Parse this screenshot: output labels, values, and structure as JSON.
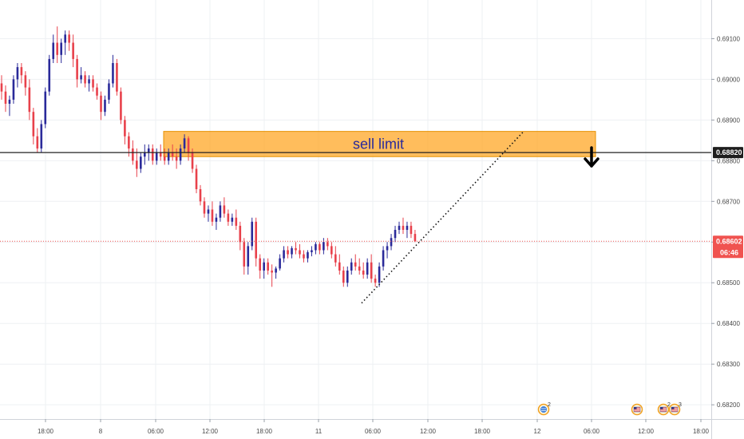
{
  "chart_data": {
    "type": "candlestick",
    "y_axis": {
      "side": "right",
      "range": [
        0.68165,
        0.69195
      ],
      "ticks": [
        "0.69100",
        "0.69000",
        "0.68900",
        "0.68800",
        "0.68700",
        "0.68600",
        "0.68500",
        "0.68400",
        "0.68300",
        "0.68200"
      ]
    },
    "x_axis": {
      "ticks": [
        "18:00",
        "8",
        "06:00",
        "12:00",
        "18:00",
        "11",
        "06:00",
        "12:00",
        "18:00",
        "12",
        "06:00",
        "12:00",
        "18:00"
      ]
    },
    "grid": true,
    "colors": {
      "up": "#2a2a9a",
      "down": "#e8414b",
      "grid": "#eef0f3",
      "zone": "#ffa726",
      "price_tag": "#f05350",
      "level_line": "#222222"
    },
    "sell_limit_zone": {
      "label": "sell limit",
      "top": 0.68872,
      "bottom": 0.6881
    },
    "horizontal_level": {
      "price": 0.6882,
      "label": "0.68820"
    },
    "current_price": {
      "price": 0.68602,
      "label": "0.68602",
      "countdown": "06:46"
    },
    "trendline": {
      "from": 0.6845,
      "to": 0.6887
    },
    "events": [
      {
        "icon": "globe-icon",
        "count": "2"
      },
      {
        "icon": "flag-icon",
        "count": ""
      },
      {
        "icon": "flag-icon",
        "count": "2"
      },
      {
        "icon": "flag-icon",
        "count": "3"
      }
    ],
    "candles": [
      [
        0.6899,
        0.6901,
        0.6895,
        0.6897
      ],
      [
        0.6897,
        0.68985,
        0.6892,
        0.6894
      ],
      [
        0.6894,
        0.6896,
        0.6891,
        0.6895
      ],
      [
        0.6895,
        0.6901,
        0.6894,
        0.69
      ],
      [
        0.69,
        0.6904,
        0.6898,
        0.6903
      ],
      [
        0.6903,
        0.6904,
        0.6899,
        0.6901
      ],
      [
        0.6901,
        0.6902,
        0.6896,
        0.6898
      ],
      [
        0.6898,
        0.69,
        0.689,
        0.6892
      ],
      [
        0.6892,
        0.6893,
        0.6884,
        0.6886
      ],
      [
        0.6886,
        0.6888,
        0.6882,
        0.6883
      ],
      [
        0.6883,
        0.689,
        0.6882,
        0.6889
      ],
      [
        0.6889,
        0.6898,
        0.6888,
        0.6897
      ],
      [
        0.6897,
        0.6906,
        0.6896,
        0.6905
      ],
      [
        0.6905,
        0.6911,
        0.6904,
        0.6909
      ],
      [
        0.6909,
        0.6913,
        0.6904,
        0.6906
      ],
      [
        0.6906,
        0.691,
        0.6904,
        0.6909
      ],
      [
        0.6909,
        0.6912,
        0.6906,
        0.6911
      ],
      [
        0.6911,
        0.6912,
        0.6907,
        0.6909
      ],
      [
        0.6909,
        0.6911,
        0.6903,
        0.6905
      ],
      [
        0.6905,
        0.6906,
        0.6898,
        0.69
      ],
      [
        0.69,
        0.6903,
        0.6899,
        0.6901
      ],
      [
        0.6901,
        0.6902,
        0.6898,
        0.6899
      ],
      [
        0.6899,
        0.6901,
        0.6897,
        0.69
      ],
      [
        0.69,
        0.6901,
        0.6897,
        0.6898
      ],
      [
        0.6898,
        0.6899,
        0.6895,
        0.6896
      ],
      [
        0.6896,
        0.6897,
        0.689,
        0.6892
      ],
      [
        0.6892,
        0.6896,
        0.6891,
        0.6895
      ],
      [
        0.6895,
        0.69,
        0.6894,
        0.6899
      ],
      [
        0.6899,
        0.6906,
        0.6898,
        0.6904
      ],
      [
        0.6904,
        0.6905,
        0.6896,
        0.6897
      ],
      [
        0.6897,
        0.6898,
        0.6889,
        0.689
      ],
      [
        0.689,
        0.6891,
        0.6884,
        0.6886
      ],
      [
        0.6886,
        0.6887,
        0.6881,
        0.6883
      ],
      [
        0.6883,
        0.6885,
        0.6879,
        0.688
      ],
      [
        0.688,
        0.6883,
        0.6876,
        0.6878
      ],
      [
        0.6878,
        0.6882,
        0.6877,
        0.6881
      ],
      [
        0.6881,
        0.6884,
        0.6879,
        0.6882
      ],
      [
        0.6882,
        0.6884,
        0.688,
        0.6883
      ],
      [
        0.6883,
        0.6884,
        0.6879,
        0.688
      ],
      [
        0.688,
        0.6883,
        0.6879,
        0.6882
      ],
      [
        0.6882,
        0.6884,
        0.688,
        0.6881
      ],
      [
        0.6881,
        0.6883,
        0.6879,
        0.688
      ],
      [
        0.688,
        0.6883,
        0.6879,
        0.6882
      ],
      [
        0.6882,
        0.6884,
        0.688,
        0.6881
      ],
      [
        0.6881,
        0.6883,
        0.6878,
        0.688
      ],
      [
        0.688,
        0.6884,
        0.6879,
        0.6883
      ],
      [
        0.6883,
        0.68865,
        0.6882,
        0.68855
      ],
      [
        0.68855,
        0.6886,
        0.688,
        0.6882
      ],
      [
        0.6882,
        0.6883,
        0.6877,
        0.6878
      ],
      [
        0.6878,
        0.6879,
        0.6872,
        0.6873
      ],
      [
        0.6873,
        0.6874,
        0.6869,
        0.687
      ],
      [
        0.687,
        0.6871,
        0.6866,
        0.6867
      ],
      [
        0.6867,
        0.6869,
        0.6865,
        0.6868
      ],
      [
        0.6868,
        0.687,
        0.6864,
        0.6865
      ],
      [
        0.6865,
        0.6867,
        0.6863,
        0.6866
      ],
      [
        0.6866,
        0.687,
        0.6865,
        0.6869
      ],
      [
        0.6869,
        0.6871,
        0.6866,
        0.6867
      ],
      [
        0.6867,
        0.6868,
        0.6864,
        0.6865
      ],
      [
        0.6865,
        0.6867,
        0.6864,
        0.6866
      ],
      [
        0.6866,
        0.6868,
        0.6863,
        0.6864
      ],
      [
        0.6864,
        0.6865,
        0.6858,
        0.686
      ],
      [
        0.686,
        0.6861,
        0.6852,
        0.6854
      ],
      [
        0.6854,
        0.686,
        0.6852,
        0.6859
      ],
      [
        0.6859,
        0.6866,
        0.6858,
        0.6865
      ],
      [
        0.6865,
        0.6866,
        0.6854,
        0.6856
      ],
      [
        0.6856,
        0.6857,
        0.6851,
        0.6853
      ],
      [
        0.6853,
        0.6856,
        0.6851,
        0.6855
      ],
      [
        0.6855,
        0.6856,
        0.6852,
        0.6853
      ],
      [
        0.6853,
        0.68545,
        0.6849,
        0.68525
      ],
      [
        0.68525,
        0.6854,
        0.6851,
        0.68535
      ],
      [
        0.68535,
        0.6857,
        0.6853,
        0.6856
      ],
      [
        0.6856,
        0.6859,
        0.6855,
        0.6858
      ],
      [
        0.6858,
        0.6859,
        0.6856,
        0.6857
      ],
      [
        0.6857,
        0.6859,
        0.6856,
        0.68585
      ],
      [
        0.68585,
        0.686,
        0.6857,
        0.6858
      ],
      [
        0.6858,
        0.68595,
        0.6856,
        0.6857
      ],
      [
        0.6857,
        0.6858,
        0.6855,
        0.6856
      ],
      [
        0.6856,
        0.6858,
        0.6855,
        0.68575
      ],
      [
        0.68575,
        0.6859,
        0.68565,
        0.6858
      ],
      [
        0.6858,
        0.686,
        0.6857,
        0.68595
      ],
      [
        0.68595,
        0.686,
        0.6857,
        0.6858
      ],
      [
        0.6858,
        0.6861,
        0.6857,
        0.686
      ],
      [
        0.686,
        0.6861,
        0.6858,
        0.6859
      ],
      [
        0.6859,
        0.686,
        0.6856,
        0.6857
      ],
      [
        0.6857,
        0.6859,
        0.6854,
        0.6855
      ],
      [
        0.6855,
        0.6857,
        0.6852,
        0.6853
      ],
      [
        0.6853,
        0.6854,
        0.6849,
        0.685
      ],
      [
        0.685,
        0.6854,
        0.6849,
        0.6853
      ],
      [
        0.6853,
        0.6856,
        0.6852,
        0.6855
      ],
      [
        0.6855,
        0.6857,
        0.6853,
        0.6854
      ],
      [
        0.6854,
        0.6856,
        0.6852,
        0.6853
      ],
      [
        0.6853,
        0.6855,
        0.6851,
        0.6852
      ],
      [
        0.6852,
        0.6856,
        0.6851,
        0.6855
      ],
      [
        0.6855,
        0.6857,
        0.685,
        0.6851
      ],
      [
        0.6851,
        0.6852,
        0.6849,
        0.685
      ],
      [
        0.685,
        0.6855,
        0.6849,
        0.6854
      ],
      [
        0.6854,
        0.6859,
        0.6853,
        0.6858
      ],
      [
        0.6858,
        0.686,
        0.6856,
        0.6859
      ],
      [
        0.6859,
        0.6862,
        0.6858,
        0.6861
      ],
      [
        0.6861,
        0.6864,
        0.686,
        0.6863
      ],
      [
        0.6863,
        0.6865,
        0.6862,
        0.6864
      ],
      [
        0.6864,
        0.6866,
        0.6862,
        0.6863
      ],
      [
        0.6863,
        0.6865,
        0.6861,
        0.6864
      ],
      [
        0.6864,
        0.6865,
        0.6861,
        0.6862
      ],
      [
        0.6862,
        0.6863,
        0.686,
        0.68602
      ]
    ]
  }
}
